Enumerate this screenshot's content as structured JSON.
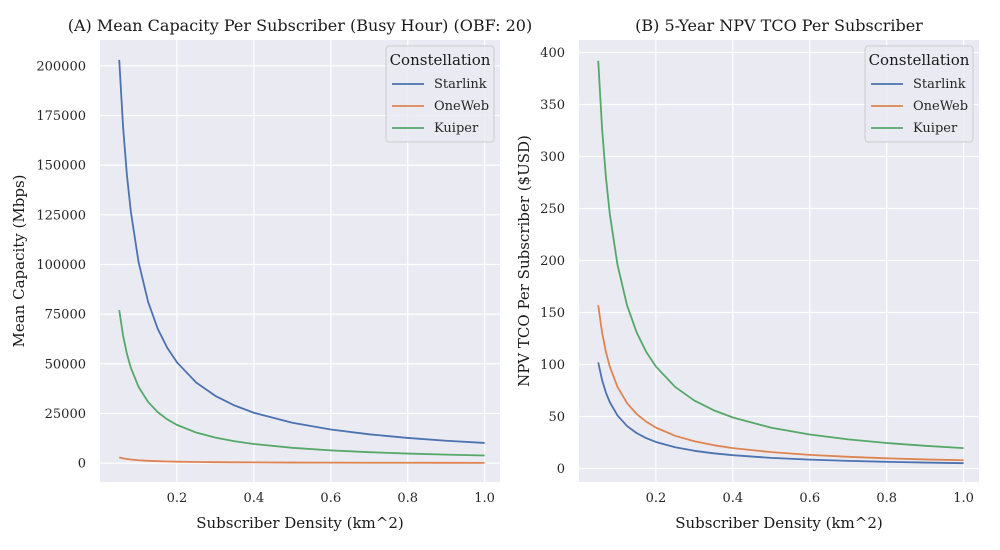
{
  "chart_data": [
    {
      "type": "line",
      "title": "(A) Mean Capacity Per Subscriber (Busy Hour) (OBF: 20)",
      "xlabel": "Subscriber Density (km^2)",
      "ylabel": "Mean Capacity (Mbps)",
      "xlim": [
        0,
        1.04
      ],
      "ylim": [
        -9500,
        213000
      ],
      "xticks": [
        0.2,
        0.4,
        0.6,
        0.8,
        1.0
      ],
      "xtick_labels": [
        "0.2",
        "0.4",
        "0.6",
        "0.8",
        "1.0"
      ],
      "yticks": [
        0,
        25000,
        50000,
        75000,
        100000,
        125000,
        150000,
        175000,
        200000
      ],
      "ytick_labels": [
        "0",
        "25000",
        "50000",
        "75000",
        "100000",
        "125000",
        "150000",
        "175000",
        "200000"
      ],
      "grid": true,
      "legend": {
        "title": "Constellation",
        "placement": "top-right"
      },
      "x": [
        0.05,
        0.06,
        0.07,
        0.08,
        0.1,
        0.125,
        0.15,
        0.175,
        0.2,
        0.25,
        0.3,
        0.35,
        0.4,
        0.5,
        0.6,
        0.7,
        0.8,
        0.9,
        1.0
      ],
      "series": [
        {
          "name": "Starlink",
          "color": "#4c72b0",
          "values": [
            203000,
            169167,
            145000,
            126875,
            101500,
            81200,
            67667,
            58000,
            50750,
            40600,
            33833,
            29000,
            25375,
            20300,
            16917,
            14500,
            12688,
            11278,
            10150
          ]
        },
        {
          "name": "OneWeb",
          "color": "#dd8452",
          "values": [
            2900,
            2417,
            2071,
            1813,
            1450,
            1160,
            967,
            829,
            725,
            580,
            483,
            414,
            363,
            290,
            242,
            207,
            181,
            161,
            145
          ]
        },
        {
          "name": "Kuiper",
          "color": "#55a868",
          "values": [
            77000,
            64167,
            55000,
            48125,
            38500,
            30800,
            25667,
            22000,
            19250,
            15400,
            12833,
            11000,
            9625,
            7700,
            6417,
            5500,
            4813,
            4278,
            3850
          ]
        }
      ]
    },
    {
      "type": "line",
      "title": "(B) 5-Year NPV TCO Per Subscriber",
      "xlabel": "Subscriber Density (km^2)",
      "ylabel": "NPV TCO Per Subscriber ($USD)",
      "xlim": [
        0,
        1.04
      ],
      "ylim": [
        -13,
        412
      ],
      "xticks": [
        0.2,
        0.4,
        0.6,
        0.8,
        1.0
      ],
      "xtick_labels": [
        "0.2",
        "0.4",
        "0.6",
        "0.8",
        "1.0"
      ],
      "yticks": [
        0,
        50,
        100,
        150,
        200,
        250,
        300,
        350,
        400
      ],
      "ytick_labels": [
        "0",
        "50",
        "100",
        "150",
        "200",
        "250",
        "300",
        "350",
        "400"
      ],
      "grid": true,
      "legend": {
        "title": "Constellation",
        "placement": "top-right"
      },
      "x": [
        0.05,
        0.06,
        0.07,
        0.08,
        0.1,
        0.125,
        0.15,
        0.175,
        0.2,
        0.25,
        0.3,
        0.35,
        0.4,
        0.5,
        0.6,
        0.7,
        0.8,
        0.9,
        1.0
      ],
      "series": [
        {
          "name": "Starlink",
          "color": "#4c72b0",
          "values": [
            102,
            85,
            72.9,
            63.8,
            51,
            40.8,
            34,
            29.1,
            25.5,
            20.4,
            17,
            14.6,
            12.8,
            10.2,
            8.5,
            7.3,
            6.4,
            5.7,
            5.1
          ]
        },
        {
          "name": "OneWeb",
          "color": "#dd8452",
          "values": [
            157,
            130.8,
            112.1,
            98.1,
            78.5,
            62.8,
            52.3,
            44.9,
            39.3,
            31.4,
            26.2,
            22.4,
            19.6,
            15.7,
            13.1,
            11.2,
            9.8,
            8.7,
            7.9
          ]
        },
        {
          "name": "Kuiper",
          "color": "#55a868",
          "values": [
            392,
            326.7,
            280,
            245,
            196,
            156.8,
            130.7,
            112,
            98,
            78.4,
            65.3,
            56,
            49,
            39.2,
            32.7,
            28,
            24.5,
            21.8,
            19.6
          ]
        }
      ]
    }
  ]
}
